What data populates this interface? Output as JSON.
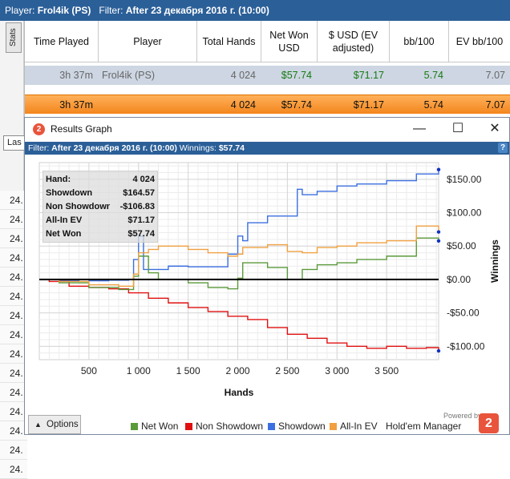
{
  "topbar": {
    "player_label": "Player:",
    "player": "Frol4ik (PS)",
    "filter_label": "Filter:",
    "filter": "After 23 декабря 2016 г. (10:00)"
  },
  "left": {
    "stats_tab": "Stats",
    "select_value": "Las",
    "row_values": [
      "24.",
      "24.",
      "24.",
      "24.",
      "24.",
      "24.",
      "24.",
      "24.",
      "24.",
      "24.",
      "24.",
      "24.",
      "24.",
      "24.",
      "24."
    ]
  },
  "table": {
    "headers": [
      "Time Played",
      "Player",
      "Total Hands",
      "Net Won USD",
      "$ USD (EV adjusted)",
      "bb/100",
      "EV bb/100"
    ],
    "row1": [
      "3h 37m",
      "Frol4ik (PS)",
      "4 024",
      "$57.74",
      "$71.17",
      "5.74",
      "7.07"
    ],
    "row2": [
      "3h 37m",
      "",
      "4 024",
      "$57.74",
      "$71.17",
      "5.74",
      "7.07"
    ]
  },
  "window": {
    "title": "Results Graph",
    "app_icon": "hm2-icon",
    "filter_bar": {
      "filter_label": "Filter:",
      "filter": "After 23 декабря 2016 г. (10:00)",
      "winnings_label": "Winnings:",
      "winnings": "$57.74"
    },
    "help": "?"
  },
  "stats_box": [
    {
      "k": "Hand:",
      "v": "4 024"
    },
    {
      "k": "Showdown",
      "v": "$164.57"
    },
    {
      "k": "Non Showdown",
      "v": "-$106.83"
    },
    {
      "k": "All-In EV",
      "v": "$71.17"
    },
    {
      "k": "Net Won",
      "v": "$57.74"
    }
  ],
  "footer": {
    "options": "Options",
    "legend": [
      {
        "label": "Net Won",
        "color": "#5a9a3a"
      },
      {
        "label": "Non Showdown",
        "color": "#e01010"
      },
      {
        "label": "Showdown",
        "color": "#3c6fe0"
      },
      {
        "label": "All-In EV",
        "color": "#f0a040"
      }
    ],
    "powered": "Powered by",
    "brand": "Hold'em Manager",
    "brand_logo": "2"
  },
  "chart_data": {
    "type": "line",
    "title": "",
    "xlabel": "Hands",
    "ylabel": "Winnings",
    "xlim": [
      0,
      4024
    ],
    "ylim": [
      -120,
      175
    ],
    "xticks": [
      500,
      1000,
      1500,
      2000,
      2500,
      3000,
      3500
    ],
    "xtick_labels": [
      "500",
      "1 000",
      "1 500",
      "2 000",
      "2 500",
      "3 000",
      "3 500"
    ],
    "yticks": [
      150,
      100,
      50,
      0,
      -50,
      -100
    ],
    "ytick_labels": [
      "$150.00",
      "$100.00",
      "$50.00",
      "$0.00",
      "-$50.00",
      "-$100.00"
    ],
    "grid": true,
    "series": [
      {
        "name": "Showdown",
        "color": "#3c6fe0",
        "x": [
          0,
          200,
          400,
          500,
          700,
          900,
          950,
          1000,
          1050,
          1100,
          1300,
          1500,
          1700,
          1900,
          2000,
          2050,
          2100,
          2300,
          2600,
          2650,
          2800,
          3000,
          3200,
          3500,
          3800,
          4024
        ],
        "y": [
          0,
          -2,
          0,
          -2,
          -1,
          0,
          30,
          65,
          15,
          15,
          20,
          19,
          19,
          38,
          65,
          58,
          85,
          95,
          135,
          127,
          132,
          140,
          143,
          148,
          158,
          164.57
        ]
      },
      {
        "name": "Non Showdown",
        "color": "#e01010",
        "x": [
          0,
          100,
          300,
          500,
          700,
          900,
          1100,
          1300,
          1500,
          1700,
          1900,
          2100,
          2300,
          2500,
          2700,
          2900,
          3100,
          3300,
          3500,
          3700,
          3900,
          4024
        ],
        "y": [
          0,
          -3,
          -10,
          -12,
          -14,
          -20,
          -28,
          -35,
          -42,
          -48,
          -55,
          -60,
          -72,
          -82,
          -88,
          -95,
          -100,
          -103,
          -100,
          -103,
          -102,
          -106.83
        ]
      },
      {
        "name": "Net Won",
        "color": "#5a9a3a",
        "x": [
          0,
          200,
          500,
          800,
          950,
          1000,
          1100,
          1200,
          1500,
          1700,
          1900,
          2000,
          2050,
          2300,
          2500,
          2650,
          2800,
          3000,
          3200,
          3500,
          3800,
          4024
        ],
        "y": [
          0,
          -5,
          -12,
          -15,
          5,
          35,
          10,
          0,
          -5,
          -12,
          -14,
          2,
          25,
          18,
          0,
          15,
          22,
          25,
          30,
          35,
          62,
          57.74
        ]
      },
      {
        "name": "All-In EV",
        "color": "#f0a040",
        "x": [
          0,
          200,
          500,
          800,
          950,
          1000,
          1100,
          1200,
          1500,
          1700,
          1900,
          2000,
          2050,
          2300,
          2500,
          2650,
          2800,
          3000,
          3200,
          3500,
          3800,
          4024
        ],
        "y": [
          0,
          -3,
          -8,
          -10,
          8,
          40,
          45,
          50,
          45,
          40,
          35,
          38,
          48,
          52,
          42,
          40,
          48,
          50,
          55,
          58,
          80,
          71.17
        ]
      },
      {
        "name": "",
        "color": "#000000",
        "x": [
          0,
          4024
        ],
        "y": [
          0,
          0
        ]
      }
    ]
  }
}
